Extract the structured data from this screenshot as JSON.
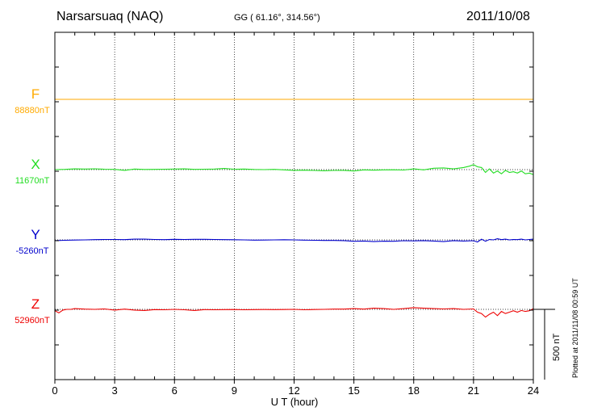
{
  "header": {
    "station": "Narsarsuaq (NAQ)",
    "coords": "GG ( 61.16°, 314.56°)",
    "date": "2011/10/08"
  },
  "side_note": "Plotted at 2011/11/08 00:59 UT",
  "chart_data": {
    "type": "line",
    "xlabel": "U T (hour)",
    "xlim": [
      0,
      24
    ],
    "xticks": [
      "0",
      "3",
      "6",
      "9",
      "12",
      "15",
      "18",
      "21",
      "24"
    ],
    "grid": true,
    "scale_bar": "500 nT",
    "series": [
      {
        "name": "F",
        "baseline": "88880nT",
        "color": "#ffaa00",
        "x": [
          0,
          24
        ],
        "y": [
          0,
          0
        ]
      },
      {
        "name": "X",
        "baseline": "11670nT",
        "color": "#22dd22",
        "x": [
          0,
          0.5,
          1,
          1.5,
          2,
          2.5,
          3,
          3.5,
          4,
          4.5,
          5,
          5.5,
          6,
          6.5,
          7,
          7.5,
          8,
          8.5,
          9,
          9.5,
          10,
          10.5,
          11,
          11.5,
          12,
          12.5,
          13,
          13.5,
          14,
          14.5,
          15,
          15.5,
          16,
          16.5,
          17,
          17.5,
          18,
          18.5,
          19,
          19.5,
          20,
          20.5,
          20.8,
          21,
          21.2,
          21.4,
          21.6,
          21.8,
          22,
          22.2,
          22.4,
          22.6,
          22.8,
          23,
          23.2,
          23.4,
          23.6,
          23.8,
          24
        ],
        "y": [
          0,
          2,
          5,
          4,
          6,
          3,
          2,
          -5,
          4,
          1,
          2,
          3,
          4,
          5,
          2,
          3,
          4,
          8,
          3,
          4,
          1,
          0,
          2,
          -2,
          -5,
          -4,
          -6,
          -8,
          -6,
          -5,
          -10,
          -2,
          -4,
          -2,
          -1,
          -3,
          5,
          -2,
          10,
          12,
          5,
          15,
          25,
          35,
          20,
          15,
          -20,
          5,
          -25,
          -10,
          -30,
          -5,
          -20,
          -15,
          -25,
          -10,
          -30,
          -25,
          -35
        ]
      },
      {
        "name": "Y",
        "baseline": "-5260nT",
        "color": "#0000cc",
        "x": [
          0,
          0.5,
          1,
          1.5,
          2,
          2.5,
          3,
          3.5,
          4,
          4.5,
          5,
          5.5,
          6,
          6.5,
          7,
          7.5,
          8,
          8.5,
          9,
          9.5,
          10,
          10.5,
          11,
          11.5,
          12,
          12.5,
          13,
          13.5,
          14,
          14.5,
          15,
          15.5,
          16,
          16.5,
          17,
          17.5,
          18,
          18.5,
          19,
          19.5,
          20,
          20.5,
          21,
          21.2,
          21.4,
          21.6,
          21.8,
          22,
          22.2,
          22.4,
          22.6,
          22.8,
          23,
          23.2,
          23.4,
          23.6,
          23.8,
          24
        ],
        "y": [
          -5,
          -3,
          -1,
          0,
          2,
          3,
          3,
          2,
          5,
          5,
          3,
          2,
          4,
          3,
          4,
          4,
          3,
          2,
          1,
          0,
          -2,
          -1,
          0,
          1,
          0,
          -2,
          -3,
          -4,
          -4,
          -5,
          -10,
          -8,
          -12,
          -9,
          -10,
          -6,
          -7,
          -5,
          -8,
          -12,
          -5,
          -8,
          -6,
          -15,
          5,
          -10,
          3,
          0,
          8,
          2,
          5,
          0,
          3,
          2,
          5,
          0,
          3,
          5
        ]
      },
      {
        "name": "Z",
        "baseline": "52960nT",
        "color": "#ee0000",
        "x": [
          0,
          0.2,
          0.4,
          0.6,
          0.8,
          1,
          1.5,
          2,
          2.5,
          3,
          3.5,
          4,
          4.5,
          5,
          5.5,
          6,
          6.5,
          7,
          7.5,
          8,
          8.5,
          9,
          9.5,
          10,
          10.5,
          11,
          11.5,
          12,
          12.5,
          13,
          13.5,
          14,
          14.5,
          15,
          15.5,
          16,
          16.5,
          17,
          17.5,
          18,
          18.5,
          19,
          19.5,
          20,
          20.5,
          21,
          21.2,
          21.4,
          21.6,
          21.8,
          22,
          22.2,
          22.4,
          22.6,
          22.8,
          23,
          23.2,
          23.4,
          23.6,
          23.8,
          24
        ],
        "y": [
          -10,
          -25,
          -5,
          0,
          0,
          5,
          2,
          0,
          3,
          -5,
          2,
          -5,
          -8,
          -2,
          -3,
          0,
          -3,
          -8,
          -2,
          -3,
          -2,
          -1,
          -3,
          -2,
          -1,
          -2,
          -1,
          0,
          -3,
          -1,
          0,
          2,
          2,
          5,
          2,
          8,
          5,
          0,
          5,
          12,
          8,
          5,
          3,
          5,
          0,
          3,
          -20,
          -30,
          -55,
          -35,
          -20,
          -45,
          -15,
          -30,
          -20,
          -10,
          -20,
          -8,
          -15,
          -10,
          5
        ]
      }
    ]
  }
}
